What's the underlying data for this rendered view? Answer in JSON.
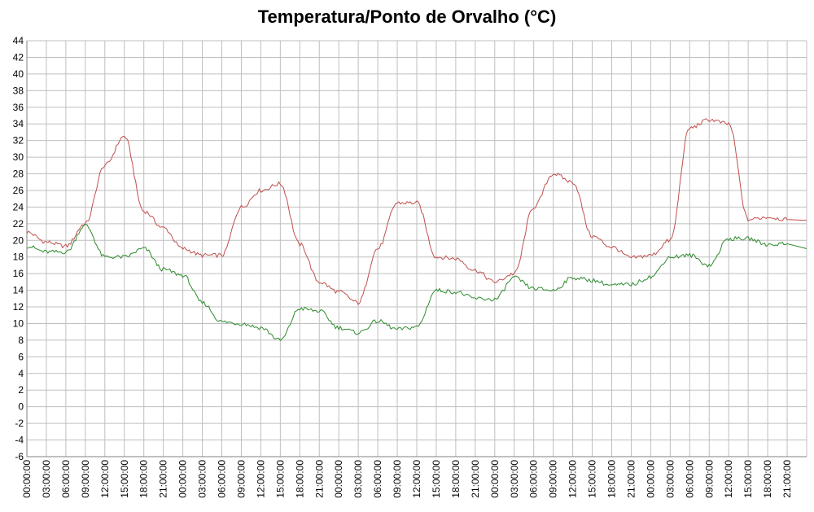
{
  "chart_data": {
    "type": "line",
    "title": "Temperatura/Ponto de Orvalho (°C)",
    "xlabel": "",
    "ylabel": "",
    "ylim": [
      -6,
      44
    ],
    "ytick_step": 2,
    "grid": true,
    "legend": "none",
    "hours_per_point": 3,
    "x_tick_labels": [
      "00:00:00",
      "03:00:00",
      "06:00:00",
      "09:00:00",
      "12:00:00",
      "15:00:00",
      "18:00:00",
      "21:00:00",
      "00:00:00",
      "03:00:00",
      "06:00:00",
      "09:00:00",
      "12:00:00",
      "15:00:00",
      "18:00:00",
      "21:00:00",
      "00:00:00",
      "03:00:00",
      "06:00:00",
      "09:00:00",
      "12:00:00",
      "15:00:00",
      "18:00:00",
      "21:00:00",
      "00:00:00",
      "03:00:00",
      "06:00:00",
      "09:00:00",
      "12:00:00",
      "15:00:00",
      "18:00:00",
      "21:00:00",
      "00:00:00",
      "03:00:00",
      "06:00:00",
      "09:00:00",
      "12:00:00",
      "15:00:00",
      "18:00:00",
      "21:00:00"
    ],
    "series": [
      {
        "name": "Temperatura",
        "color": "#c0504d",
        "values": [
          21,
          19.8,
          19.3,
          22,
          29,
          32.5,
          23.5,
          21.5,
          19,
          18.2,
          18.2,
          24,
          26,
          26.8,
          19.5,
          15,
          13.8,
          12.5,
          19,
          24.5,
          24.5,
          18,
          17.8,
          16.4,
          15,
          16,
          24,
          28,
          27,
          20.5,
          19.2,
          17.9,
          18.2,
          20,
          33.5,
          34.5,
          34,
          22.5,
          22.8,
          22.5
        ]
      },
      {
        "name": "Ponto de Orvalho",
        "color": "#2e8b2e",
        "values": [
          19.3,
          18.6,
          18.6,
          21.8,
          18,
          18,
          19,
          16.5,
          15.8,
          12.5,
          10.2,
          10,
          9.5,
          8,
          11.8,
          11.5,
          9.5,
          8.9,
          10.3,
          9.3,
          9.6,
          14,
          13.8,
          13,
          12.9,
          15.5,
          14.2,
          14,
          15.5,
          15.2,
          14.6,
          14.7,
          15.6,
          18,
          18.2,
          17,
          20.2,
          20.2,
          19.5,
          19.6
        ]
      }
    ]
  }
}
